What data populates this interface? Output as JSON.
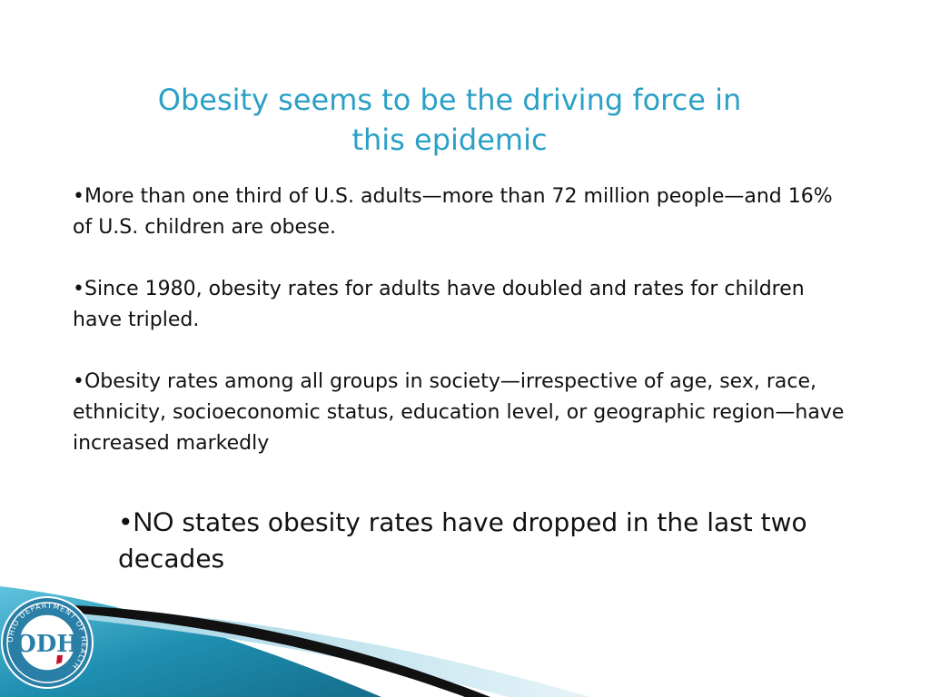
{
  "slide": {
    "title_line1": "Obesity seems to be the driving force in",
    "title_line2": "this epidemic",
    "bullets": [
      {
        "marker": "•",
        "text": "More than one third of U.S. adults—more than 72 million people—and 16% of U.S. children are obese."
      },
      {
        "marker": "•",
        "text": "Since 1980, obesity rates for adults have doubled and rates for children have tripled."
      },
      {
        "marker": "•",
        "text": "Obesity rates among all groups in society—irrespective of age, sex, race, ethnicity, socioeconomic status, education level, or geographic region—have increased markedly"
      }
    ],
    "callout": {
      "marker": "•",
      "emphasis": "NO",
      "text": " states obesity rates have dropped in the last two decades"
    }
  },
  "logo": {
    "text": "ODH",
    "ring_text": "OHIO DEPARTMENT OF HEALTH"
  },
  "colors": {
    "title": "#2aa0c6",
    "body": "#111111",
    "wave_teal": "#1f8fb0",
    "wave_light": "#cfe6ef",
    "wave_dark": "#111111"
  }
}
